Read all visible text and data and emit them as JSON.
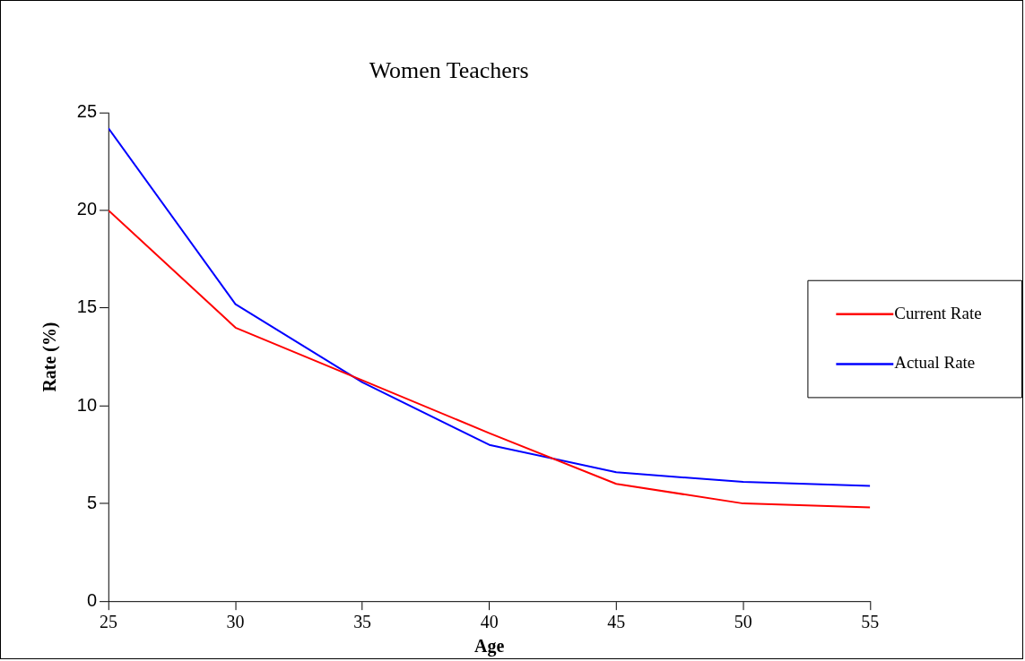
{
  "chart_data": {
    "type": "line",
    "title": "Women Teachers",
    "xlabel": "Age",
    "ylabel": "Rate (%)",
    "x": [
      25,
      30,
      35,
      40,
      45,
      50,
      55
    ],
    "series": [
      {
        "name": "Current Rate",
        "color": "#ff0000",
        "values": [
          20,
          14,
          11.3,
          8.6,
          6.0,
          5.0,
          4.8
        ]
      },
      {
        "name": "Actual Rate",
        "color": "#0000ff",
        "values": [
          24.2,
          15.2,
          11.2,
          8.0,
          6.6,
          6.1,
          5.9
        ]
      }
    ],
    "xlim": [
      25,
      55
    ],
    "xticks": [
      25,
      30,
      35,
      40,
      45,
      50,
      55
    ],
    "ylim": [
      0,
      25
    ],
    "yticks": [
      0,
      5,
      10,
      15,
      20,
      25
    ],
    "grid": false,
    "legend": "right",
    "marker": "none",
    "line_style": "solid"
  }
}
